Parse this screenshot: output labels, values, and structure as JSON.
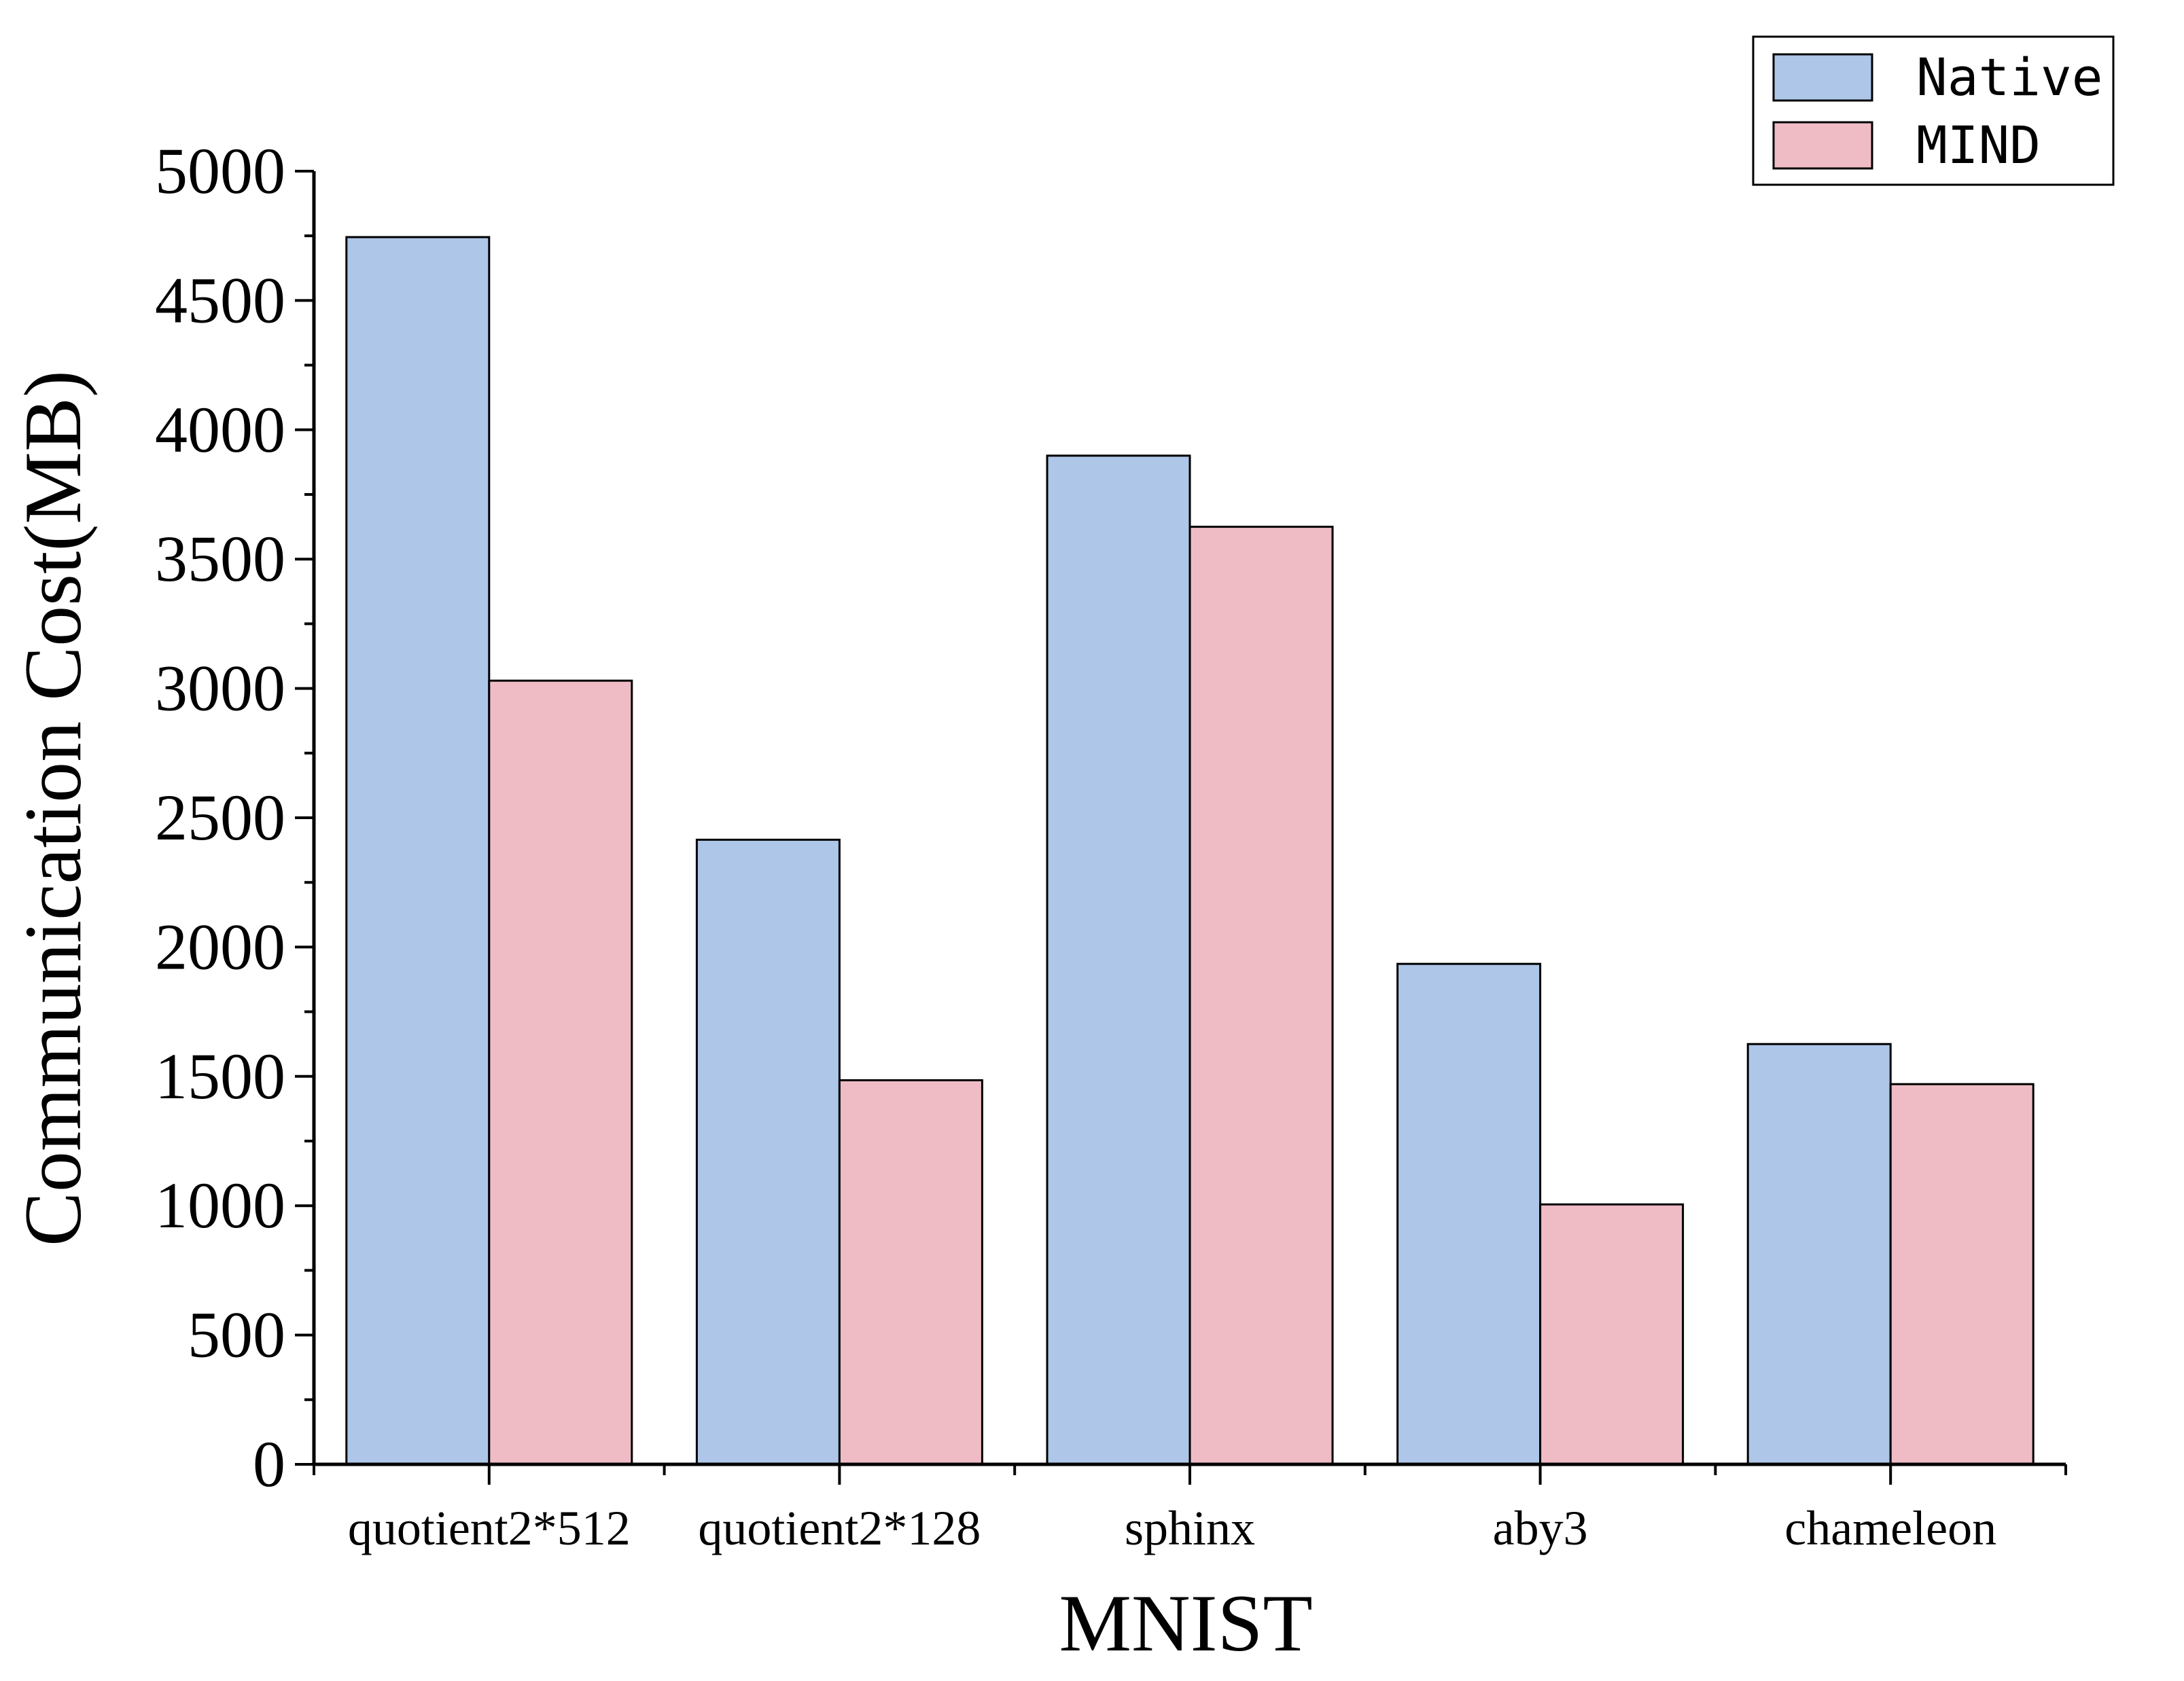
{
  "chart_data": {
    "type": "bar",
    "title": "",
    "xlabel": "MNIST",
    "ylabel": "Communication Cost(MB)",
    "ylim": [
      0,
      5000
    ],
    "yticks": [
      "0",
      "500",
      "1000",
      "1500",
      "2000",
      "2500",
      "3000",
      "3500",
      "4000",
      "4500",
      "5000"
    ],
    "categories": [
      "quotient2*512",
      "quotient2*128",
      "sphinx",
      "aby3",
      "chameleon"
    ],
    "series": [
      {
        "name": "Native",
        "color": "#aec6e8",
        "values": [
          4745,
          2415,
          3900,
          1935,
          1625
        ]
      },
      {
        "name": "MIND",
        "color": "#efbcc6",
        "values": [
          3030,
          1485,
          3625,
          1005,
          1470
        ]
      }
    ],
    "legend_position": "top-right",
    "grid": false
  }
}
